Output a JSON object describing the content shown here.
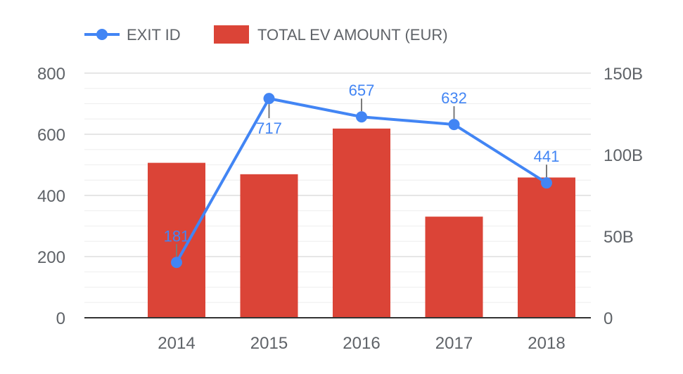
{
  "chart_data": {
    "type": "bar",
    "categories": [
      "2014",
      "2015",
      "2016",
      "2017",
      "2018"
    ],
    "series": [
      {
        "name": "TOTAL EV AMOUNT (EUR)",
        "type": "bar",
        "axis": "right",
        "color": "#db4437",
        "values": [
          95000000000,
          88000000000,
          116000000000,
          62000000000,
          86000000000
        ]
      },
      {
        "name": "EXIT ID",
        "type": "line",
        "axis": "left",
        "color": "#4285f4",
        "values": [
          181,
          717,
          657,
          632,
          441
        ],
        "data_labels": [
          "181",
          "717",
          "657",
          "632",
          "441"
        ]
      }
    ],
    "y_left": {
      "ylim": [
        0,
        800
      ],
      "ticks": [
        "800",
        "600",
        "400",
        "200",
        "0"
      ]
    },
    "y_right": {
      "ylim": [
        0,
        150000000000
      ],
      "ticks": [
        "150B",
        "100B",
        "50B",
        "0"
      ]
    },
    "legend_placement": "top-left",
    "grid": true
  }
}
